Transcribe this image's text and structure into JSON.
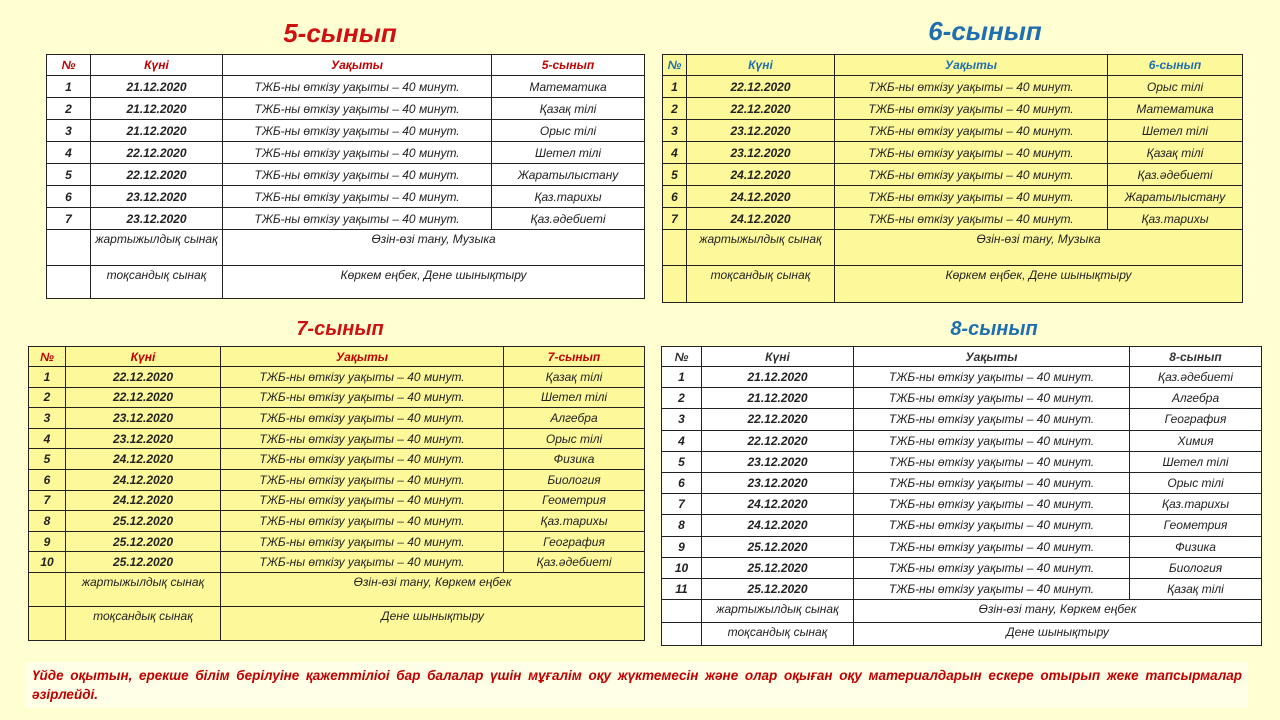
{
  "colors": {
    "red": "#d01010",
    "blue": "#1f6fb0",
    "yellow_table": "#fdf99a",
    "page_bg": "#ffffd2"
  },
  "tables": [
    {
      "title": "5-сынып",
      "headers": [
        "№",
        "Күні",
        "Уақыты",
        "5-сынып"
      ],
      "rows": [
        [
          "1",
          "21.12.2020",
          "ТЖБ-ны өткізу уақыты –  40 минут.",
          "Математика"
        ],
        [
          "2",
          "21.12.2020",
          "ТЖБ-ны өткізу уақыты –  40 минут.",
          "Қазақ тілі"
        ],
        [
          "3",
          "21.12.2020",
          "ТЖБ-ны өткізу уақыты –  40 минут.",
          "Орыс тілі"
        ],
        [
          "4",
          "22.12.2020",
          "ТЖБ-ны өткізу уақыты –  40 минут.",
          "Шетел тілі"
        ],
        [
          "5",
          "22.12.2020",
          "ТЖБ-ны өткізу уақыты –  40 минут.",
          "Жаратылыстану"
        ],
        [
          "6",
          "23.12.2020",
          "ТЖБ-ны өткізу уақыты –  40 минут.",
          "Қаз.тарихы"
        ],
        [
          "7",
          "23.12.2020",
          "ТЖБ-ны өткізу уақыты –  40 минут.",
          "Қаз.әдебиеті"
        ]
      ],
      "extra": [
        [
          "жартыжылдық сынақ",
          "Өзін-өзі тану, Музыка"
        ],
        [
          "тоқсандық сынақ",
          "Көркем еңбек, Дене шынықтыру"
        ]
      ]
    },
    {
      "title": "6-сынып",
      "headers": [
        "№",
        "Күні",
        "Уақыты",
        "6-сынып"
      ],
      "rows": [
        [
          "1",
          "22.12.2020",
          "ТЖБ-ны өткізу уақыты –  40 минут.",
          "Орыс тілі"
        ],
        [
          "2",
          "22.12.2020",
          "ТЖБ-ны өткізу уақыты –  40 минут.",
          "Математика"
        ],
        [
          "3",
          "23.12.2020",
          "ТЖБ-ны өткізу уақыты –  40 минут.",
          "Шетел тілі"
        ],
        [
          "4",
          "23.12.2020",
          "ТЖБ-ны өткізу уақыты –  40 минут.",
          "Қазақ тілі"
        ],
        [
          "5",
          "24.12.2020",
          "ТЖБ-ны өткізу уақыты –  40 минут.",
          "Қаз.әдебиеті"
        ],
        [
          "6",
          "24.12.2020",
          "ТЖБ-ны өткізу уақыты –  40 минут.",
          "Жаратылыстану"
        ],
        [
          "7",
          "24.12.2020",
          "ТЖБ-ны өткізу уақыты –  40 минут.",
          "Қаз.тарихы"
        ]
      ],
      "extra": [
        [
          "жартыжылдық сынақ",
          "Өзін-өзі тану, Музыка"
        ],
        [
          "тоқсандық сынақ",
          "Көркем еңбек, Дене шынықтыру"
        ]
      ]
    },
    {
      "title": "7-сынып",
      "headers": [
        "№",
        "Күні",
        "Уақыты",
        "7-сынып"
      ],
      "rows": [
        [
          "1",
          "22.12.2020",
          "ТЖБ-ны өткізу уақыты –  40 минут.",
          "Қазақ тілі"
        ],
        [
          "2",
          "22.12.2020",
          "ТЖБ-ны өткізу уақыты –  40 минут.",
          "Шетел тілі"
        ],
        [
          "3",
          "23.12.2020",
          "ТЖБ-ны өткізу уақыты –  40 минут.",
          "Алгебра"
        ],
        [
          "4",
          "23.12.2020",
          "ТЖБ-ны өткізу уақыты –  40 минут.",
          "Орыс тілі"
        ],
        [
          "5",
          "24.12.2020",
          "ТЖБ-ны өткізу уақыты –  40 минут.",
          "Физика"
        ],
        [
          "6",
          "24.12.2020",
          "ТЖБ-ны өткізу уақыты –  40 минут.",
          "Биология"
        ],
        [
          "7",
          "24.12.2020",
          "ТЖБ-ны өткізу уақыты –  40 минут.",
          "Геометрия"
        ],
        [
          "8",
          "25.12.2020",
          "ТЖБ-ны өткізу уақыты –  40 минут.",
          "Қаз.тарихы"
        ],
        [
          "9",
          "25.12.2020",
          "ТЖБ-ны өткізу уақыты –  40 минут.",
          "География"
        ],
        [
          "10",
          "25.12.2020",
          "ТЖБ-ны өткізу уақыты –  40 минут.",
          "Қаз.әдебиеті"
        ]
      ],
      "extra": [
        [
          "жартыжылдық сынақ",
          "Өзін-өзі тану, Көркем еңбек"
        ],
        [
          "тоқсандық сынақ",
          "Дене шынықтыру"
        ]
      ]
    },
    {
      "title": "8-сынып",
      "headers": [
        "№",
        "Күні",
        "Уақыты",
        "8-сынып"
      ],
      "rows": [
        [
          "1",
          "21.12.2020",
          "ТЖБ-ны өткізу уақыты –  40 минут.",
          "Қаз.әдебиеті"
        ],
        [
          "2",
          "21.12.2020",
          "ТЖБ-ны өткізу уақыты –  40 минут.",
          "Алгебра"
        ],
        [
          "3",
          "22.12.2020",
          "ТЖБ-ны өткізу уақыты –  40 минут.",
          "География"
        ],
        [
          "4",
          "22.12.2020",
          "ТЖБ-ны өткізу уақыты –  40 минут.",
          "Химия"
        ],
        [
          "5",
          "23.12.2020",
          "ТЖБ-ны өткізу уақыты –  40 минут.",
          "Шетел тілі"
        ],
        [
          "6",
          "23.12.2020",
          "ТЖБ-ны өткізу уақыты –  40 минут.",
          "Орыс тілі"
        ],
        [
          "7",
          "24.12.2020",
          "ТЖБ-ны өткізу уақыты –  40 минут.",
          "Қаз.тарихы"
        ],
        [
          "8",
          "24.12.2020",
          "ТЖБ-ны өткізу уақыты –  40 минут.",
          "Геометрия"
        ],
        [
          "9",
          "25.12.2020",
          "ТЖБ-ны өткізу уақыты –  40 минут.",
          "Физика"
        ],
        [
          "10",
          "25.12.2020",
          "ТЖБ-ны өткізу уақыты –  40 минут.",
          "Биология"
        ],
        [
          "11",
          "25.12.2020",
          "ТЖБ-ны өткізу уақыты –  40 минут.",
          "Қазақ тілі"
        ]
      ],
      "extra": [
        [
          "жартыжылдық сынақ",
          "Өзін-өзі тану, Көркем еңбек"
        ],
        [
          "тоқсандық сынақ",
          "Дене шынықтыру"
        ]
      ]
    }
  ],
  "footer": "Үйде оқытын, ерекше білім берілуіне қажеттіліоі бар балалар үшін мұғалім оқу жүктемесін және олар оқыған оқу материалдарын ескере отырып жеке тапсырмалар әзірлейді."
}
